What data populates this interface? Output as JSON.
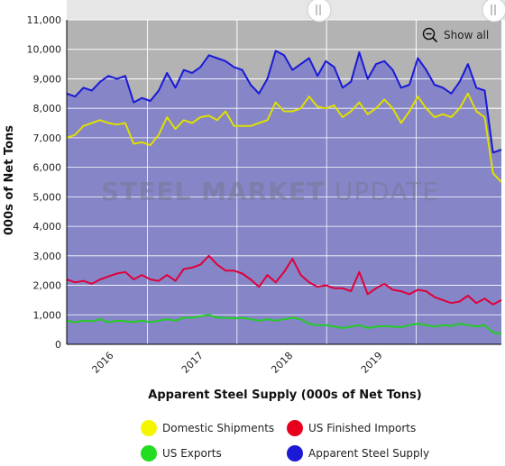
{
  "chart_data": {
    "type": "line",
    "title": "Apparent Steel Supply (000s of Net Tons)",
    "xlabel": "Apparent Steel Supply (000s of Net Tons)",
    "ylabel": "000s of Net Tons",
    "ylim": [
      0,
      11000
    ],
    "yticks": [
      "0",
      "1,000",
      "2,000",
      "3,000",
      "4,000",
      "5,000",
      "6,000",
      "7,000",
      "8,000",
      "9,000",
      "10,000",
      "11,000"
    ],
    "xticks": [
      "2016",
      "2017",
      "2018",
      "2019"
    ],
    "x_start_year": 2015.6,
    "x_end_year": 2020.45,
    "grid": true,
    "legend_position": "bottom",
    "series": [
      {
        "name": "Apparent Steel Supply",
        "color": "#1a1ad6",
        "values": [
          8500,
          8400,
          8700,
          8600,
          8900,
          9100,
          9000,
          9100,
          8200,
          8350,
          8250,
          8600,
          9200,
          8700,
          9300,
          9200,
          9400,
          9800,
          9700,
          9600,
          9400,
          9300,
          8800,
          8500,
          9000,
          9950,
          9800,
          9300,
          9500,
          9700,
          9100,
          9600,
          9400,
          8700,
          8900,
          9900,
          9000,
          9500,
          9600,
          9300,
          8700,
          8800,
          9700,
          9300,
          8800,
          8700,
          8500,
          8900,
          9500,
          8700,
          8600,
          6500,
          6600
        ]
      },
      {
        "name": "Domestic Shipments",
        "color": "#e0e000",
        "values": [
          7000,
          7100,
          7400,
          7500,
          7600,
          7500,
          7450,
          7500,
          6800,
          6850,
          6750,
          7100,
          7700,
          7300,
          7600,
          7500,
          7700,
          7750,
          7600,
          7900,
          7400,
          7400,
          7400,
          7500,
          7600,
          8200,
          7900,
          7900,
          8000,
          8400,
          8050,
          8000,
          8100,
          7700,
          7900,
          8200,
          7800,
          8000,
          8300,
          8000,
          7500,
          7900,
          8400,
          8000,
          7700,
          7800,
          7700,
          8000,
          8500,
          7900,
          7700,
          5800,
          5500
        ]
      },
      {
        "name": "US Finished Imports",
        "color": "#e0003a",
        "values": [
          2200,
          2100,
          2150,
          2050,
          2200,
          2300,
          2400,
          2450,
          2200,
          2350,
          2200,
          2150,
          2350,
          2150,
          2550,
          2600,
          2700,
          3000,
          2700,
          2500,
          2500,
          2400,
          2200,
          1950,
          2350,
          2100,
          2450,
          2900,
          2350,
          2100,
          1950,
          2000,
          1900,
          1900,
          1800,
          2450,
          1700,
          1900,
          2050,
          1850,
          1800,
          1700,
          1850,
          1800,
          1600,
          1500,
          1400,
          1450,
          1650,
          1400,
          1550,
          1350,
          1500
        ]
      },
      {
        "name": "US Exports",
        "color": "#22cc22",
        "values": [
          800,
          750,
          800,
          780,
          850,
          750,
          800,
          780,
          760,
          800,
          750,
          800,
          850,
          800,
          900,
          900,
          950,
          1000,
          900,
          900,
          880,
          900,
          850,
          800,
          850,
          800,
          850,
          900,
          850,
          700,
          650,
          650,
          600,
          550,
          600,
          650,
          550,
          600,
          620,
          600,
          580,
          650,
          700,
          650,
          600,
          650,
          620,
          700,
          650,
          600,
          650,
          400,
          350
        ]
      }
    ]
  },
  "watermark": {
    "word1": "STEEL",
    "word2": "MARKET",
    "word3": "UPDATE"
  },
  "controls": {
    "show_all_label": "Show all",
    "zoom_icon": "zoom-out-icon",
    "scrollbar_handle_icon": "grip-icon"
  },
  "colors": {
    "plot_bg": "#8585c8",
    "plot_top": "#b3b3b3",
    "grid": "#ffffff",
    "axis": "#000000"
  }
}
